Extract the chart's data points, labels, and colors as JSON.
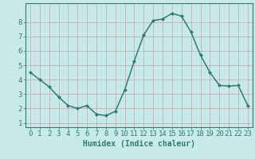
{
  "x": [
    0,
    1,
    2,
    3,
    4,
    5,
    6,
    7,
    8,
    9,
    10,
    11,
    12,
    13,
    14,
    15,
    16,
    17,
    18,
    19,
    20,
    21,
    22,
    23
  ],
  "y": [
    4.5,
    4.0,
    3.5,
    2.8,
    2.2,
    2.0,
    2.2,
    1.6,
    1.5,
    1.8,
    3.3,
    5.3,
    7.1,
    8.1,
    8.2,
    8.6,
    8.4,
    7.3,
    5.7,
    4.5,
    3.6,
    3.55,
    3.6,
    2.2
  ],
  "line_color": "#2e7d6e",
  "bg_color": "#c8eaea",
  "grid_major_color": "#aad4d4",
  "grid_minor_color": "#bce0e0",
  "xlabel": "Humidex (Indice chaleur)",
  "xlim": [
    -0.5,
    23.5
  ],
  "ylim": [
    0.7,
    9.3
  ],
  "yticks": [
    1,
    2,
    3,
    4,
    5,
    6,
    7,
    8
  ],
  "xticks": [
    0,
    1,
    2,
    3,
    4,
    5,
    6,
    7,
    8,
    9,
    10,
    11,
    12,
    13,
    14,
    15,
    16,
    17,
    18,
    19,
    20,
    21,
    22,
    23
  ],
  "marker": "D",
  "marker_size": 2.0,
  "line_width": 1.1,
  "font_size": 6.5,
  "xlabel_fontsize": 7.0
}
